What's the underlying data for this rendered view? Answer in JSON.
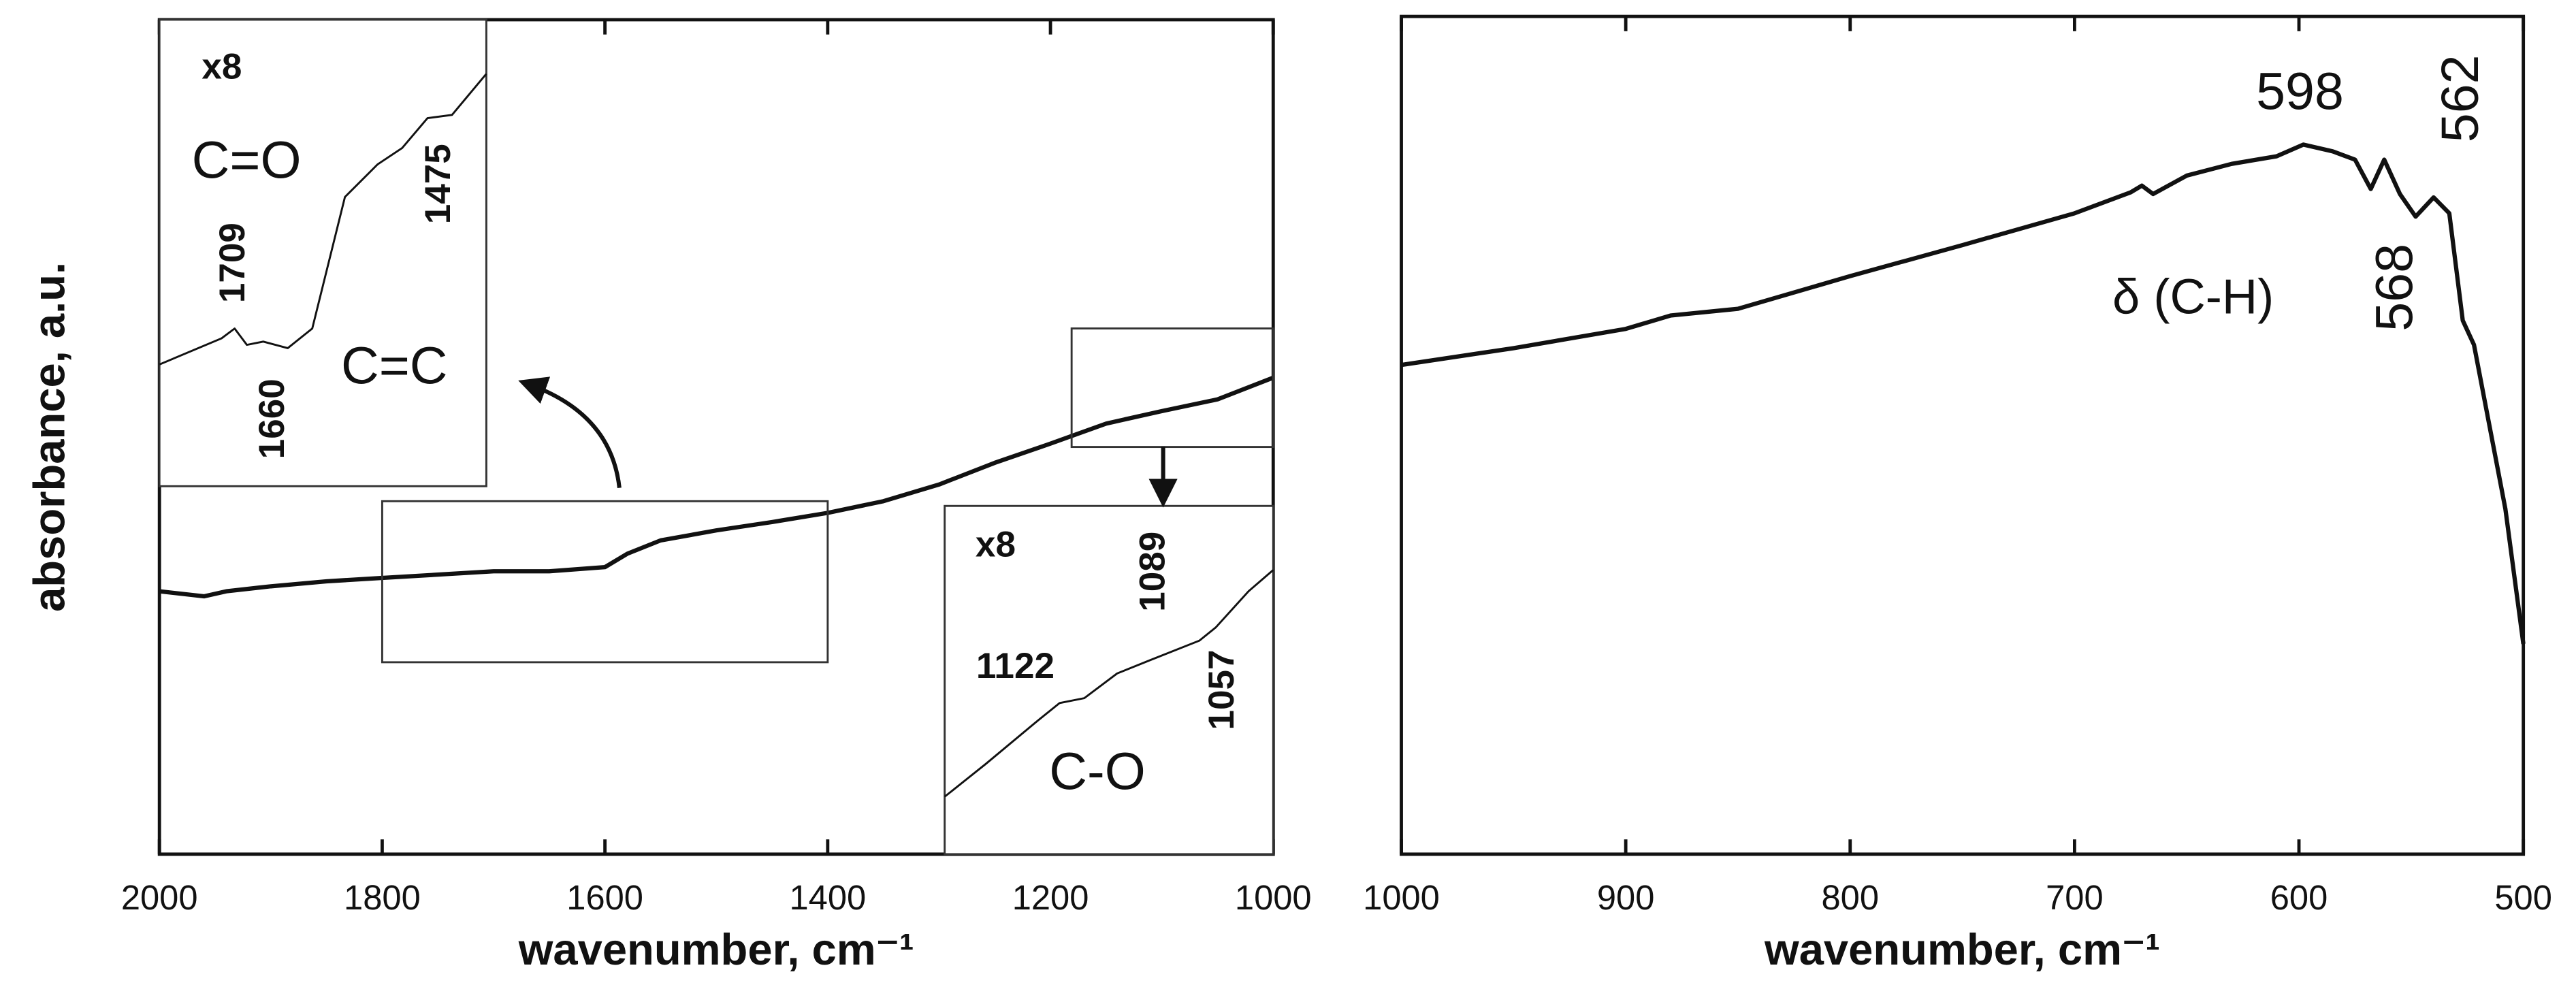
{
  "chart_data": [
    {
      "type": "line",
      "xlabel": "wavenumber, cm⁻¹",
      "ylabel": "absorbance, a.u.",
      "color": "#111111",
      "xlim": [
        2000,
        1000
      ],
      "xticks": [
        2000,
        1800,
        1600,
        1400,
        1200,
        1000
      ],
      "ylim": [
        0,
        100
      ],
      "x": [
        2000,
        1960,
        1940,
        1900,
        1850,
        1800,
        1750,
        1700,
        1650,
        1600,
        1580,
        1550,
        1500,
        1450,
        1400,
        1350,
        1300,
        1250,
        1200,
        1150,
        1100,
        1050,
        1000
      ],
      "values": [
        31.5,
        30.9,
        31.5,
        32.1,
        32.7,
        33.1,
        33.5,
        33.9,
        33.9,
        34.4,
        36.0,
        37.6,
        38.8,
        39.8,
        40.9,
        42.3,
        44.3,
        46.9,
        49.2,
        51.6,
        53.1,
        54.5,
        57.1
      ],
      "insets": [
        {
          "label": "x8",
          "region_xlim": [
            1800,
            1400
          ],
          "region_ylim": [
            23.0,
            42.3
          ],
          "xlim": [
            1800,
            1400
          ],
          "ylim": [
            0,
            100
          ],
          "x": [
            1800,
            1724,
            1708,
            1693,
            1673,
            1643,
            1613,
            1573,
            1533,
            1503,
            1472,
            1442,
            1400
          ],
          "values": [
            26.1,
            31.7,
            33.8,
            30.3,
            31.0,
            29.6,
            33.8,
            62.0,
            69.0,
            72.5,
            78.9,
            79.6,
            88.4
          ],
          "annotations": [
            "C=O",
            "1709",
            "1475",
            "1660",
            "C=C"
          ]
        },
        {
          "label": "x8",
          "region_xlim": [
            1181,
            1000
          ],
          "region_ylim": [
            48.8,
            63.0
          ],
          "xlim": [
            1180,
            1000
          ],
          "ylim": [
            0,
            100
          ],
          "x": [
            1180,
            1157.5,
            1130.5,
            1117,
            1103.5,
            1085.5,
            1067.5,
            1040.5,
            1031.5,
            1013.5,
            1000
          ],
          "values": [
            16.5,
            25.9,
            37.7,
            43.4,
            44.8,
            51.9,
            55.7,
            61.3,
            65.1,
            75.5,
            81.6
          ],
          "annotations": [
            "1089",
            "1122",
            "1057",
            "C-O"
          ]
        }
      ]
    },
    {
      "type": "line",
      "xlabel": "wavenumber, cm⁻¹",
      "color": "#111111",
      "xlim": [
        1000,
        500
      ],
      "xticks": [
        1000,
        900,
        800,
        700,
        600,
        500
      ],
      "ylim": [
        0,
        100
      ],
      "x": [
        1000,
        950,
        900,
        880,
        850,
        800,
        750,
        700,
        675,
        670,
        665,
        650,
        630,
        610,
        598,
        585,
        575,
        568,
        562,
        555,
        548,
        540,
        533,
        527,
        522,
        515,
        508,
        500
      ],
      "values": [
        58.4,
        60.4,
        62.7,
        64.3,
        65.1,
        69.0,
        72.7,
        76.5,
        79.0,
        79.8,
        78.8,
        81.0,
        82.4,
        83.3,
        84.7,
        83.9,
        82.9,
        79.4,
        82.9,
        78.8,
        76.1,
        78.4,
        76.5,
        63.7,
        60.8,
        51.0,
        41.2,
        25.1
      ],
      "annotations": [
        "598",
        "562",
        "568",
        "δ (C-H)"
      ]
    }
  ]
}
